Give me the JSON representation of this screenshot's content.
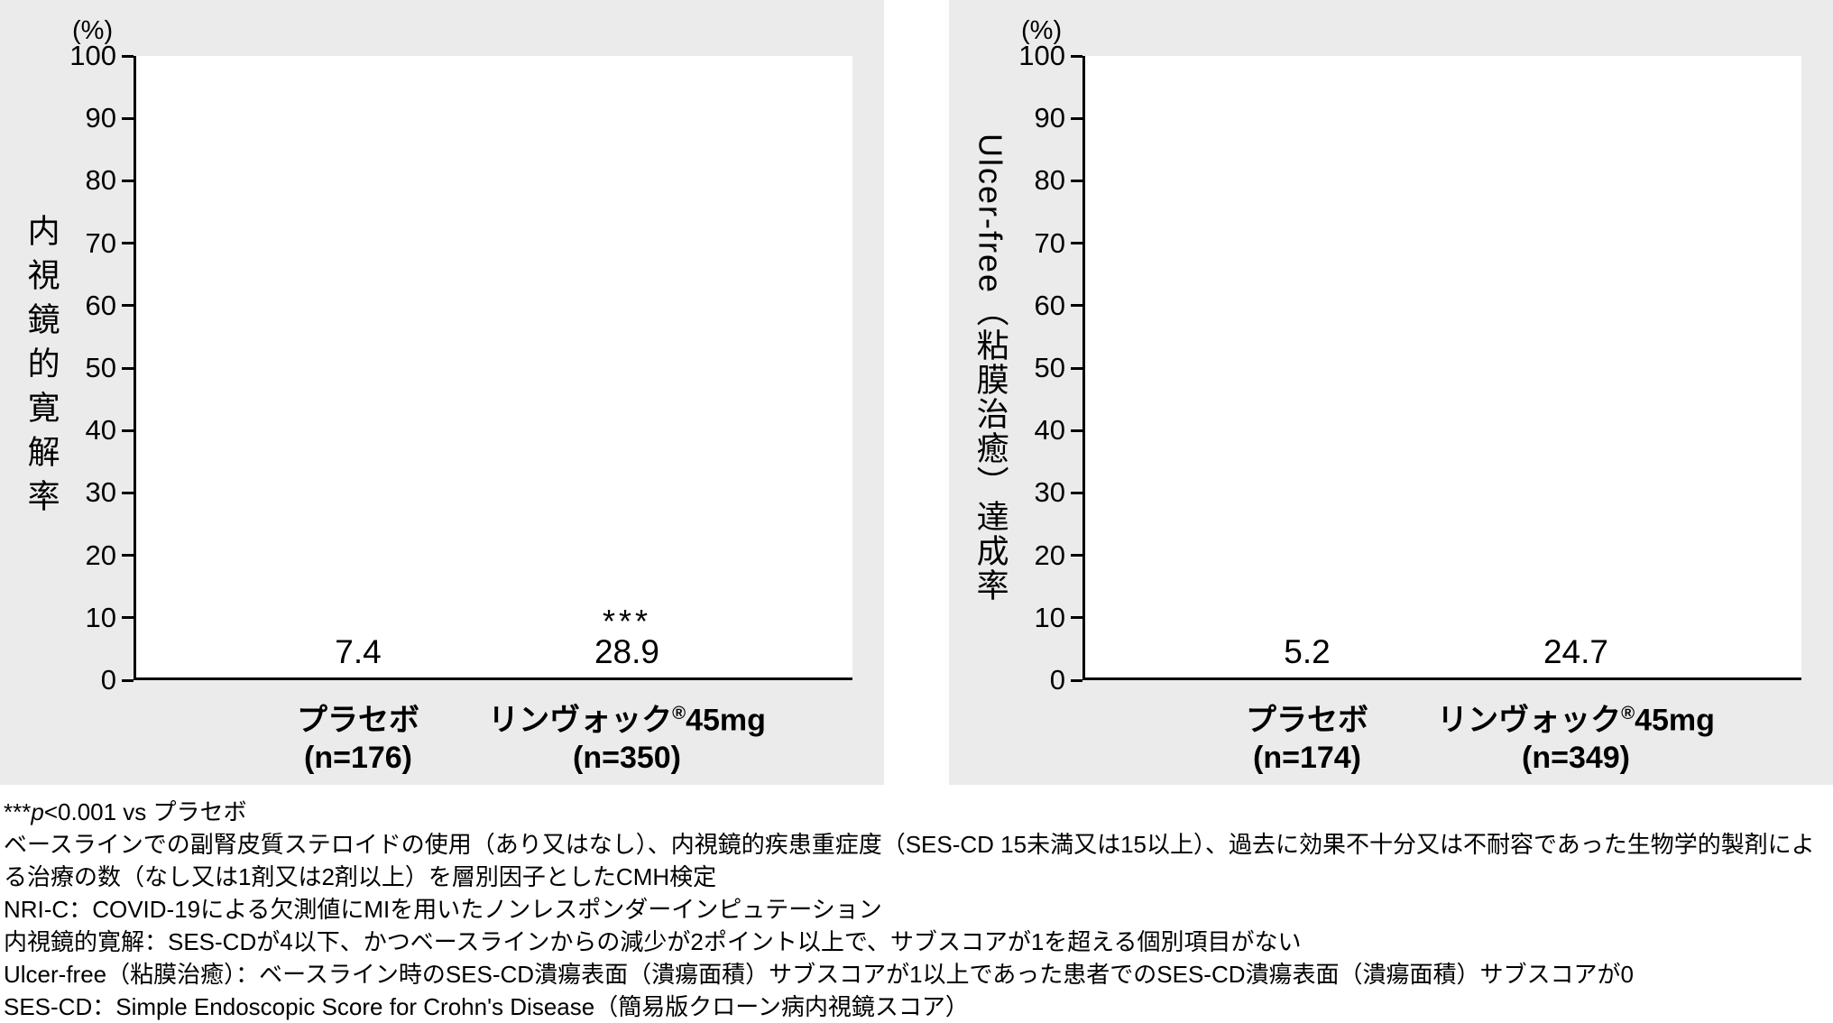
{
  "chart_data": [
    {
      "type": "bar",
      "unit_label": "(%)",
      "ylabel": "内視鏡的寛解率",
      "ylim": [
        0,
        100
      ],
      "ytick_step": 10,
      "grid": false,
      "legend": "none",
      "groups": [
        {
          "label": "プラセボ",
          "reg": "",
          "dose": "",
          "n_label": "(n=176)",
          "value": 7.4,
          "value_label": "7.4",
          "sig": "",
          "color": "#767676"
        },
        {
          "label": "リンヴォック",
          "reg": "®",
          "dose": "45mg",
          "n_label": "(n=350)",
          "value": 28.9,
          "value_label": "28.9",
          "sig": "***",
          "color": "#ffd400"
        }
      ]
    },
    {
      "type": "bar",
      "unit_label": "(%)",
      "ylabel": "Ulcer-free（粘膜治癒）達成率",
      "ylim": [
        0,
        100
      ],
      "ytick_step": 10,
      "grid": false,
      "legend": "none",
      "groups": [
        {
          "label": "プラセボ",
          "reg": "",
          "dose": "",
          "n_label": "(n=174)",
          "value": 5.2,
          "value_label": "5.2",
          "sig": "",
          "color": "#767676"
        },
        {
          "label": "リンヴォック",
          "reg": "®",
          "dose": "45mg",
          "n_label": "(n=349)",
          "value": 24.7,
          "value_label": "24.7",
          "sig": "",
          "color": "#ffd400"
        }
      ]
    }
  ],
  "footnote_sig": {
    "stars": "***",
    "p_symbol": "p",
    "rest": "<0.001 vs プラセボ"
  },
  "footnotes": [
    "ベースラインでの副腎皮質ステロイドの使用（あり又はなし）、内視鏡的疾患重症度（SES-CD 15未満又は15以上）、過去に効果不十分又は不耐容であった生物学的製剤による治療の数（なし又は1剤又は2剤以上）を層別因子としたCMH検定",
    "NRI-C：COVID-19による欠測値にMIを用いたノンレスポンダーインピュテーション",
    "内視鏡的寛解：SES-CDが4以下、かつベースラインからの減少が2ポイント以上で、サブスコアが1を超える個別項目がない",
    "Ulcer-free（粘膜治癒）：ベースライン時のSES-CD潰瘍表面（潰瘍面積）サブスコアが1以上であった患者でのSES-CD潰瘍表面（潰瘍面積）サブスコアが0",
    "SES-CD：Simple Endoscopic Score for Crohn's Disease（簡易版クローン病内視鏡スコア）"
  ],
  "colors": {
    "placebo_bar": "#767676",
    "treatment_bar": "#ffd400",
    "panel_background": "#ebebeb",
    "axis": "#000000"
  }
}
